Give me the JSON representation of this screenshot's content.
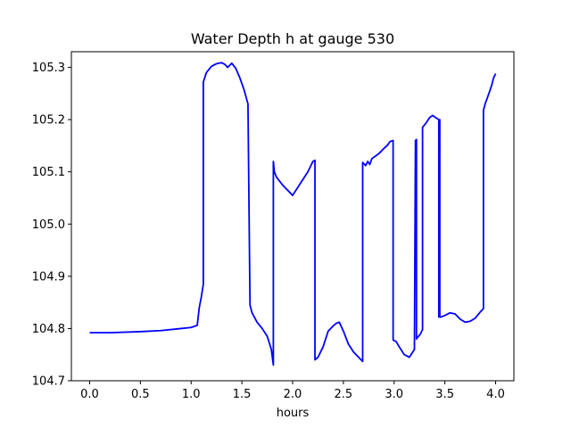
{
  "chart_data": {
    "type": "line",
    "title": "Water Depth h at gauge 530",
    "xlabel": "hours",
    "ylabel": "",
    "xlim": [
      -0.18,
      4.18
    ],
    "ylim": [
      104.7,
      105.33
    ],
    "xticks": [
      0.0,
      0.5,
      1.0,
      1.5,
      2.0,
      2.5,
      3.0,
      3.5,
      4.0
    ],
    "xtick_labels": [
      "0.0",
      "0.5",
      "1.0",
      "1.5",
      "2.0",
      "2.5",
      "3.0",
      "3.5",
      "4.0"
    ],
    "yticks": [
      104.7,
      104.8,
      104.9,
      105.0,
      105.1,
      105.2,
      105.3
    ],
    "ytick_labels": [
      "104.7",
      "104.8",
      "104.9",
      "105.0",
      "105.1",
      "105.2",
      "105.3"
    ],
    "grid": false,
    "series": [
      {
        "color": "#0000ff",
        "x": [
          0.0,
          0.2,
          0.5,
          0.7,
          0.9,
          1.0,
          1.06,
          1.08,
          1.1,
          1.12,
          1.12,
          1.15,
          1.2,
          1.25,
          1.3,
          1.33,
          1.36,
          1.4,
          1.44,
          1.48,
          1.52,
          1.56,
          1.58,
          1.58,
          1.6,
          1.65,
          1.7,
          1.75,
          1.79,
          1.81,
          1.81,
          1.82,
          1.84,
          1.86,
          1.9,
          1.95,
          2.0,
          2.05,
          2.1,
          2.15,
          2.2,
          2.22,
          2.22,
          2.25,
          2.3,
          2.35,
          2.4,
          2.43,
          2.46,
          2.5,
          2.55,
          2.6,
          2.65,
          2.69,
          2.69,
          2.72,
          2.74,
          2.76,
          2.78,
          2.8,
          2.85,
          2.9,
          2.93,
          2.96,
          2.99,
          2.99,
          3.02,
          3.05,
          3.1,
          3.15,
          3.2,
          3.21,
          3.22,
          3.22,
          3.24,
          3.26,
          3.28,
          3.28,
          3.3,
          3.32,
          3.35,
          3.38,
          3.4,
          3.44,
          3.44,
          3.45,
          3.45,
          3.46,
          3.5,
          3.55,
          3.6,
          3.65,
          3.7,
          3.75,
          3.8,
          3.85,
          3.88,
          3.88,
          3.9,
          3.93,
          3.96,
          3.98,
          4.0
        ],
        "y": [
          104.792,
          104.792,
          104.794,
          104.796,
          104.8,
          104.802,
          104.806,
          104.84,
          104.86,
          104.885,
          105.272,
          105.29,
          105.302,
          105.307,
          105.309,
          105.306,
          105.3,
          105.308,
          105.298,
          105.28,
          105.258,
          105.23,
          104.845,
          104.845,
          104.83,
          104.812,
          104.8,
          104.785,
          104.76,
          104.73,
          105.12,
          105.1,
          105.09,
          105.085,
          105.075,
          105.065,
          105.055,
          105.07,
          105.085,
          105.1,
          105.12,
          105.122,
          104.74,
          104.745,
          104.765,
          104.795,
          104.805,
          104.81,
          104.812,
          104.795,
          104.77,
          104.755,
          104.745,
          104.737,
          105.118,
          105.112,
          105.12,
          105.114,
          105.125,
          105.128,
          105.135,
          105.145,
          105.15,
          105.158,
          105.16,
          104.778,
          104.775,
          104.765,
          104.75,
          104.745,
          104.76,
          105.16,
          105.162,
          104.78,
          104.785,
          104.79,
          104.798,
          105.185,
          105.19,
          105.195,
          105.204,
          105.208,
          105.205,
          105.2,
          104.822,
          105.2,
          104.822,
          104.822,
          104.825,
          104.83,
          104.828,
          104.818,
          104.812,
          104.814,
          104.82,
          104.832,
          104.838,
          105.218,
          105.232,
          105.248,
          105.265,
          105.28,
          105.288
        ]
      }
    ]
  }
}
